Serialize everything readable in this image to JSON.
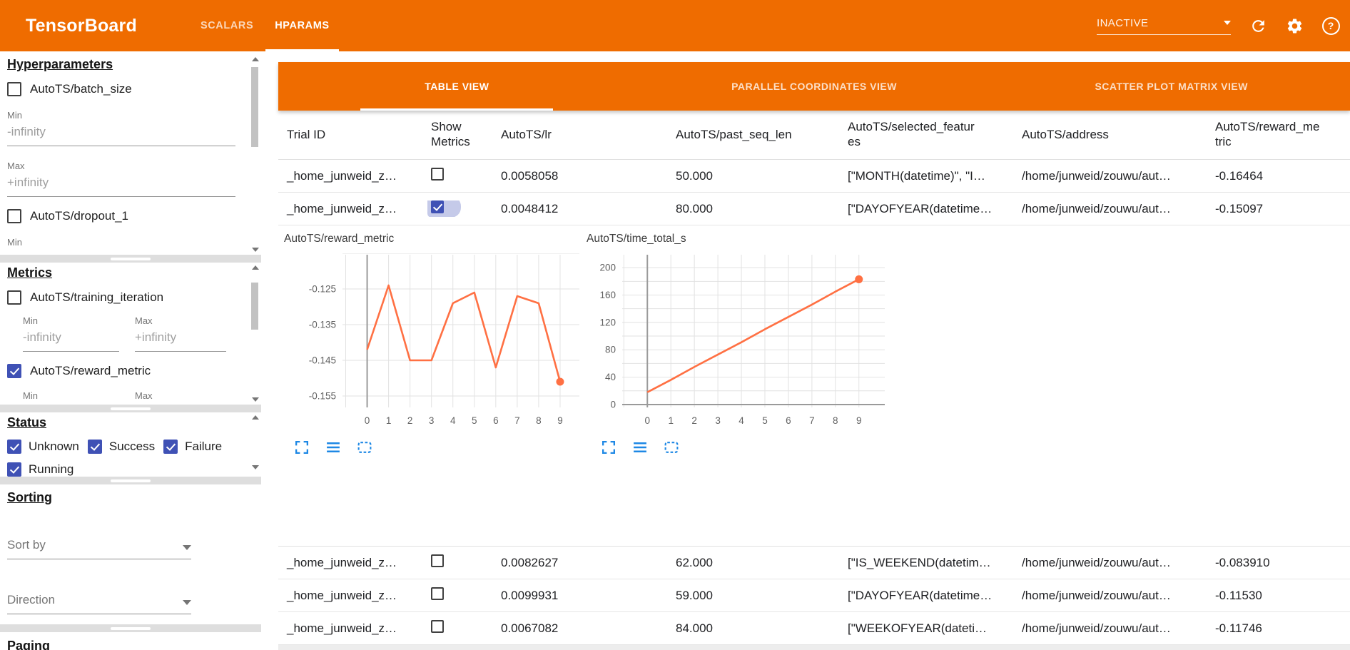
{
  "header": {
    "title": "TensorBoard",
    "nav": [
      {
        "label": "SCALARS",
        "active": false
      },
      {
        "label": "HPARAMS",
        "active": true
      }
    ],
    "run_status": "INACTIVE",
    "icons": [
      "dropdown-caret",
      "refresh",
      "settings",
      "help"
    ],
    "accent_color": "#ef6c00"
  },
  "sidebar": {
    "hyperparameters": {
      "title": "Hyperparameters",
      "items": [
        {
          "label": "AutoTS/batch_size",
          "checked": false
        },
        {
          "label": "AutoTS/dropout_1",
          "checked": false
        }
      ],
      "min_label": "Min",
      "max_label": "Max",
      "min_placeholder": "-infinity",
      "max_placeholder": "+infinity"
    },
    "metrics": {
      "title": "Metrics",
      "items": [
        {
          "label": "AutoTS/training_iteration",
          "checked": false
        },
        {
          "label": "AutoTS/reward_metric",
          "checked": true
        }
      ],
      "min_label": "Min",
      "max_label": "Max",
      "min_placeholder": "-infinity",
      "max_placeholder": "+infinity"
    },
    "status": {
      "title": "Status",
      "options": [
        {
          "label": "Unknown",
          "checked": true
        },
        {
          "label": "Success",
          "checked": true
        },
        {
          "label": "Failure",
          "checked": true
        },
        {
          "label": "Running",
          "checked": true
        }
      ]
    },
    "sorting": {
      "title": "Sorting",
      "sort_by_placeholder": "Sort by",
      "direction_placeholder": "Direction"
    },
    "paging": {
      "title": "Paging"
    }
  },
  "main": {
    "view_tabs": [
      {
        "label": "TABLE VIEW",
        "active": true
      },
      {
        "label": "PARALLEL COORDINATES VIEW",
        "active": false
      },
      {
        "label": "SCATTER PLOT MATRIX VIEW",
        "active": false
      }
    ],
    "table": {
      "columns": [
        "Trial ID",
        "Show Metrics",
        "AutoTS/lr",
        "AutoTS/past_seq_len",
        "AutoTS/selected_features",
        "AutoTS/address",
        "AutoTS/reward_metric"
      ],
      "rows_top": [
        {
          "trial_id": "_home_junweid_z…",
          "show_metrics": false,
          "lr": "0.0058058",
          "past_seq_len": "50.000",
          "selected_features": "[\"MONTH(datetime)\", \"I…",
          "address": "/home/junweid/zouwu/aut…",
          "reward_metric": "-0.16464"
        },
        {
          "trial_id": "_home_junweid_z…",
          "show_metrics": true,
          "lr": "0.0048412",
          "past_seq_len": "80.000",
          "selected_features": "[\"DAYOFYEAR(datetime…",
          "address": "/home/junweid/zouwu/aut…",
          "reward_metric": "-0.15097"
        }
      ],
      "rows_bottom": [
        {
          "trial_id": "_home_junweid_z…",
          "show_metrics": false,
          "lr": "0.0082627",
          "past_seq_len": "62.000",
          "selected_features": "[\"IS_WEEKEND(datetim…",
          "address": "/home/junweid/zouwu/aut…",
          "reward_metric": "-0.083910"
        },
        {
          "trial_id": "_home_junweid_z…",
          "show_metrics": false,
          "lr": "0.0099931",
          "past_seq_len": "59.000",
          "selected_features": "[\"DAYOFYEAR(datetime…",
          "address": "/home/junweid/zouwu/aut…",
          "reward_metric": "-0.11530"
        },
        {
          "trial_id": "_home_junweid_z…",
          "show_metrics": false,
          "lr": "0.0067082",
          "past_seq_len": "84.000",
          "selected_features": "[\"WEEKOFYEAR(dateti…",
          "address": "/home/junweid/zouwu/aut…",
          "reward_metric": "-0.11746"
        }
      ]
    }
  },
  "chart_data": [
    {
      "type": "line",
      "title": "AutoTS/reward_metric",
      "x": [
        0,
        1,
        2,
        3,
        4,
        5,
        6,
        7,
        8,
        9
      ],
      "values": [
        -0.142,
        -0.124,
        -0.145,
        -0.145,
        -0.129,
        -0.126,
        -0.147,
        -0.127,
        -0.129,
        -0.151
      ],
      "xticks": [
        0,
        1,
        2,
        3,
        4,
        5,
        6,
        7,
        8,
        9
      ],
      "xtick_labels": [
        "0",
        "1",
        "2",
        "3",
        "4",
        "5",
        "6",
        "7",
        "8",
        "9"
      ],
      "yticks": [
        -0.125,
        -0.135,
        -0.145,
        -0.155
      ],
      "ytick_labels": [
        "-0.125",
        "-0.135",
        "-0.145",
        "-0.155"
      ],
      "ygrid": [
        -0.115,
        -0.125,
        -0.135,
        -0.145,
        -0.155
      ],
      "xgrid": [
        -1,
        0,
        1,
        2,
        3,
        4,
        5,
        6,
        7,
        8,
        9
      ],
      "ylim": [
        -0.1582,
        -0.1154
      ],
      "xlim": [
        -1.15,
        9.9
      ],
      "zero_axes": {
        "vertical": true,
        "horizontal": false
      },
      "grid": true,
      "legend": "none",
      "line_color": "#ff7043",
      "end_marker": true,
      "toolbar_icons": [
        "fullscreen",
        "data-table",
        "zoom-selection"
      ]
    },
    {
      "type": "line",
      "title": "AutoTS/time_total_s",
      "x": [
        0,
        1,
        2,
        3,
        4,
        5,
        6,
        7,
        8,
        9
      ],
      "values": [
        18,
        36,
        55,
        73,
        91,
        110,
        128,
        146,
        165,
        183
      ],
      "xticks": [
        0,
        1,
        2,
        3,
        4,
        5,
        6,
        7,
        8,
        9
      ],
      "xtick_labels": [
        "0",
        "1",
        "2",
        "3",
        "4",
        "5",
        "6",
        "7",
        "8",
        "9"
      ],
      "yticks": [
        0,
        40,
        80,
        120,
        160,
        200
      ],
      "ytick_labels": [
        "0",
        "40",
        "80",
        "120",
        "160",
        "200"
      ],
      "ygrid": [
        0,
        20,
        40,
        60,
        80,
        100,
        120,
        140,
        160,
        180,
        200
      ],
      "xgrid": [
        -1,
        0,
        1,
        2,
        3,
        4,
        5,
        6,
        7,
        8,
        9
      ],
      "ylim": [
        -4.2,
        218.9
      ],
      "xlim": [
        -1.07,
        10.1
      ],
      "zero_axes": {
        "vertical": true,
        "horizontal": true
      },
      "grid": true,
      "legend": "none",
      "line_color": "#ff7043",
      "end_marker": true,
      "toolbar_icons": [
        "fullscreen",
        "data-table",
        "zoom-selection"
      ]
    }
  ]
}
